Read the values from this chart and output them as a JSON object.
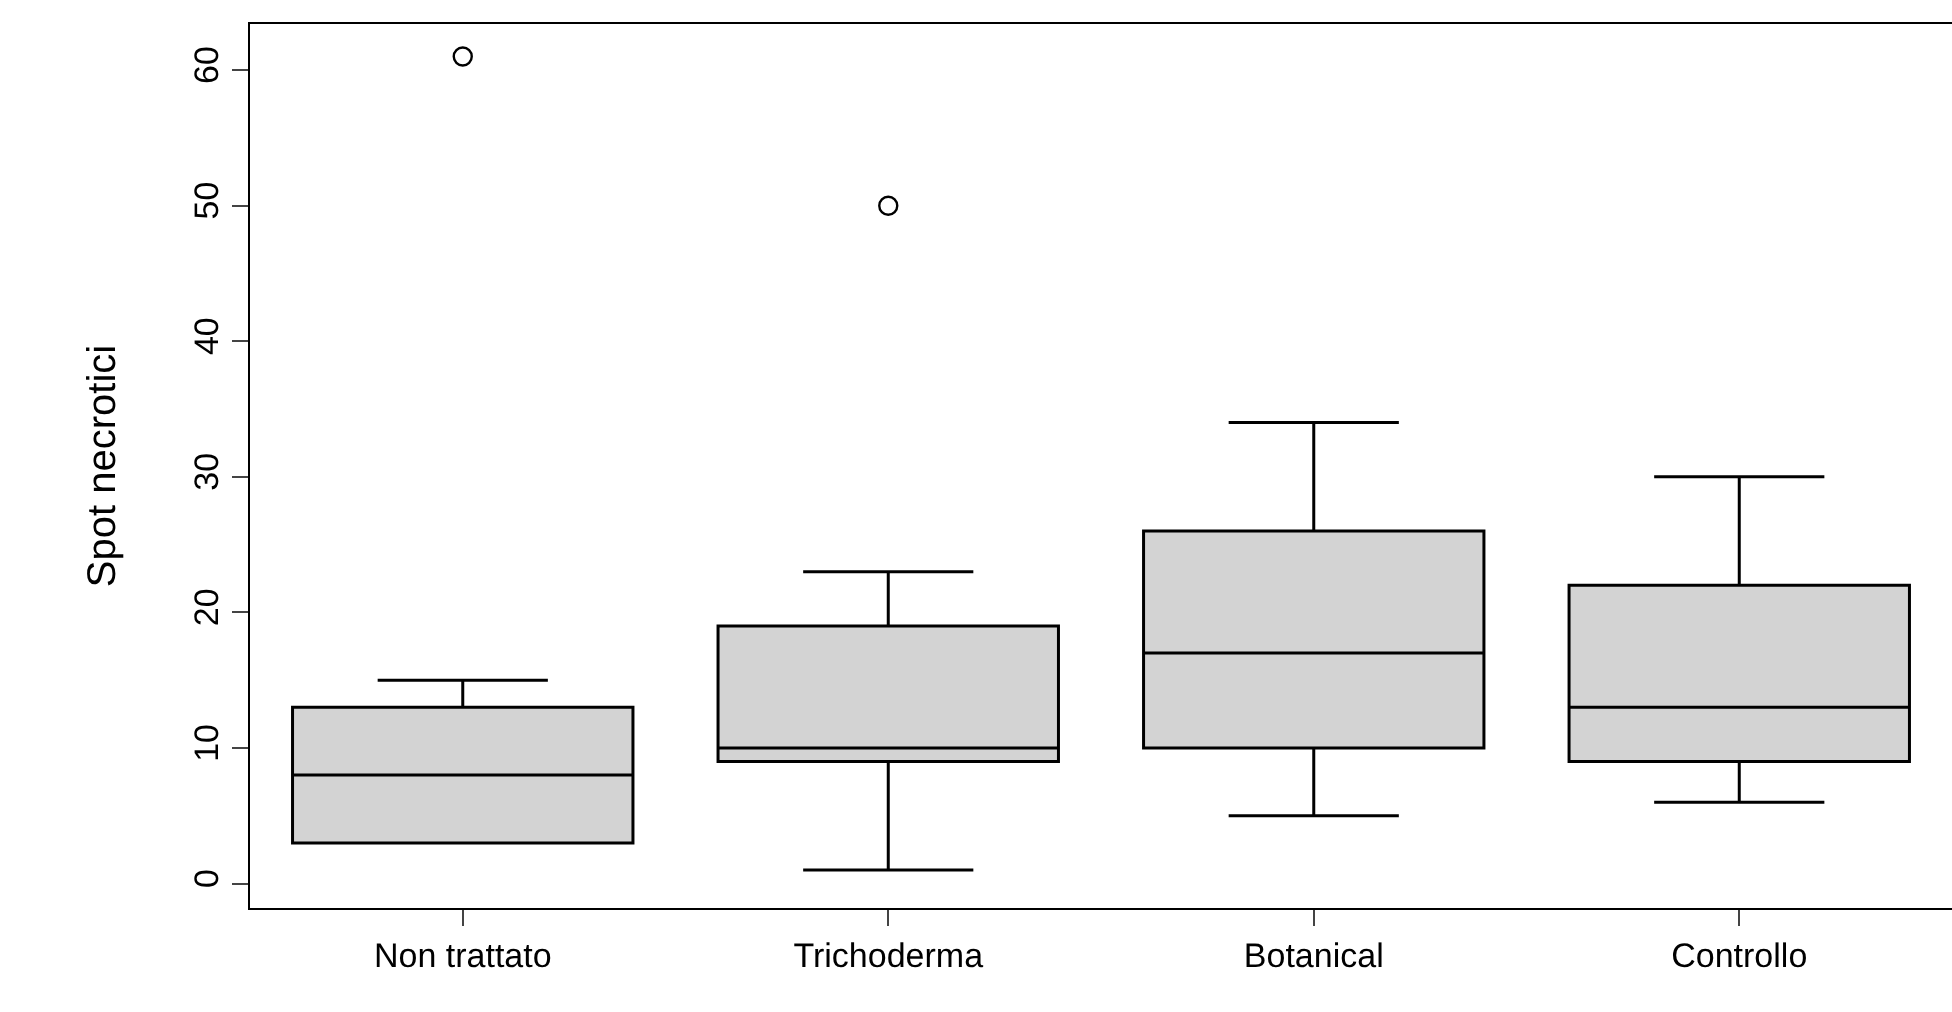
{
  "chart_data": {
    "type": "box",
    "ylabel": "Spot necrotici",
    "categories": [
      "Non trattato",
      "Trichoderma",
      "Botanical",
      "Controllo"
    ],
    "boxes": [
      {
        "low": 3,
        "q1": 3,
        "median": 8,
        "q3": 13,
        "high": 15,
        "outliers": [
          61
        ]
      },
      {
        "low": 1,
        "q1": 9,
        "median": 10,
        "q3": 19,
        "high": 23,
        "outliers": [
          50
        ]
      },
      {
        "low": 5,
        "q1": 10,
        "median": 17,
        "q3": 26,
        "high": 34
      },
      {
        "low": 6,
        "q1": 9,
        "median": 13,
        "q3": 22,
        "high": 30
      }
    ],
    "color": "#d3d3d3",
    "ylim": [
      -1.8,
      63.4
    ],
    "yticks": [
      0,
      10,
      20,
      30,
      40,
      50,
      60
    ]
  }
}
